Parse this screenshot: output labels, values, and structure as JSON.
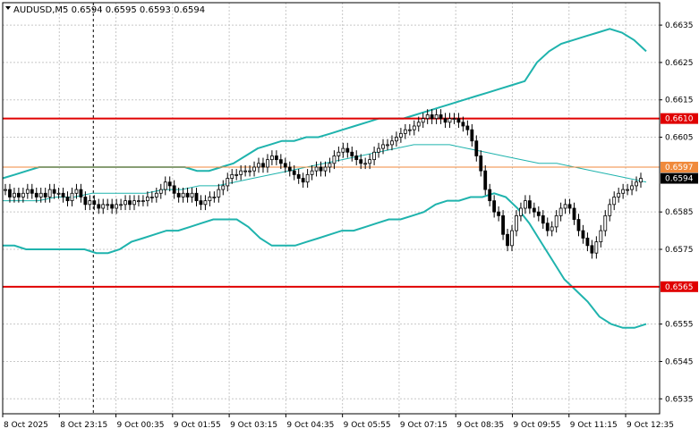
{
  "chart_title": "AUDUSD,M5  0.6594 0.6595 0.6593 0.6594",
  "colors": {
    "background": "#ffffff",
    "grid": "#c8c8c8",
    "bollinger_bands": "#1fb3ad",
    "moving_average": "#1fb3ad",
    "support_resistance": "#e00000",
    "current_level_line": "#f08a3c",
    "candle_up": "#ffffff",
    "candle_down": "#000000",
    "current_price_tag": "#000000"
  },
  "chart_data": {
    "type": "candlestick",
    "symbol": "AUDUSD",
    "timeframe": "M5",
    "ohlc_header": {
      "open": 0.6594,
      "high": 0.6595,
      "low": 0.6593,
      "close": 0.6594
    },
    "x_labels": [
      "8 Oct 2025",
      "8 Oct 23:15",
      "9 Oct 00:35",
      "9 Oct 01:55",
      "9 Oct 03:15",
      "9 Oct 04:35",
      "9 Oct 05:55",
      "9 Oct 07:15",
      "9 Oct 08:35",
      "9 Oct 09:55",
      "9 Oct 11:15",
      "9 Oct 12:35"
    ],
    "y_ticks": [
      "0.6635",
      "0.6625",
      "0.6615",
      "0.6605",
      "0.6585",
      "0.6575",
      "0.6555",
      "0.6545",
      "0.6535"
    ],
    "ylim": [
      0.6531,
      0.6641
    ],
    "grid": true,
    "period_separator": "8 Oct 23:15",
    "horizontal_levels": [
      {
        "label": "0.6610",
        "value": 0.661,
        "style": "resistance"
      },
      {
        "label": "0.6597",
        "value": 0.6597,
        "style": "current-level"
      },
      {
        "label": "0.6565",
        "value": 0.6565,
        "style": "support"
      }
    ],
    "current_price": {
      "label": "0.6594",
      "value": 0.6594
    },
    "candles_close": [
      0.6591,
      0.6589,
      0.659,
      0.6589,
      0.659,
      0.6591,
      0.659,
      0.6589,
      0.659,
      0.6589,
      0.6591,
      0.659,
      0.659,
      0.6589,
      0.6588,
      0.659,
      0.6591,
      0.6589,
      0.6587,
      0.6588,
      0.6587,
      0.6586,
      0.6587,
      0.6587,
      0.6586,
      0.6587,
      0.6587,
      0.6588,
      0.6587,
      0.6588,
      0.6588,
      0.6588,
      0.6589,
      0.6589,
      0.659,
      0.6591,
      0.6593,
      0.6592,
      0.659,
      0.6589,
      0.659,
      0.6589,
      0.659,
      0.6588,
      0.6587,
      0.6588,
      0.6589,
      0.6589,
      0.6591,
      0.6592,
      0.6594,
      0.6595,
      0.6595,
      0.6596,
      0.6596,
      0.6596,
      0.6597,
      0.6598,
      0.6597,
      0.6599,
      0.66,
      0.6599,
      0.6598,
      0.6597,
      0.6596,
      0.6595,
      0.6594,
      0.6593,
      0.6595,
      0.6596,
      0.6597,
      0.6596,
      0.6597,
      0.6598,
      0.66,
      0.6601,
      0.6602,
      0.6601,
      0.66,
      0.6599,
      0.6598,
      0.6598,
      0.6599,
      0.6601,
      0.6602,
      0.6603,
      0.6603,
      0.6604,
      0.6605,
      0.6606,
      0.6607,
      0.6607,
      0.6608,
      0.6609,
      0.661,
      0.6611,
      0.661,
      0.6611,
      0.661,
      0.6609,
      0.661,
      0.661,
      0.6609,
      0.6608,
      0.6607,
      0.6604,
      0.66,
      0.6596,
      0.6591,
      0.6588,
      0.6585,
      0.6584,
      0.6579,
      0.6576,
      0.658,
      0.6584,
      0.6586,
      0.6588,
      0.6586,
      0.6585,
      0.6584,
      0.6582,
      0.658,
      0.6581,
      0.6584,
      0.6586,
      0.6587,
      0.6586,
      0.6583,
      0.658,
      0.6578,
      0.6576,
      0.6574,
      0.6577,
      0.658,
      0.6584,
      0.6587,
      0.6589,
      0.659,
      0.6591,
      0.6591,
      0.6592,
      0.6593,
      0.6594
    ],
    "bollinger_upper": [
      0.6594,
      0.6595,
      0.6596,
      0.6597,
      0.6597,
      0.6597,
      0.6597,
      0.6597,
      0.6597,
      0.6597,
      0.6597,
      0.6597,
      0.6597,
      0.6597,
      0.6597,
      0.6597,
      0.6596,
      0.6596,
      0.6597,
      0.6598,
      0.66,
      0.6602,
      0.6603,
      0.6604,
      0.6604,
      0.6605,
      0.6605,
      0.6606,
      0.6607,
      0.6608,
      0.6609,
      0.661,
      0.661,
      0.661,
      0.6611,
      0.6612,
      0.6613,
      0.6614,
      0.6615,
      0.6616,
      0.6617,
      0.6618,
      0.6619,
      0.662,
      0.6625,
      0.6628,
      0.663,
      0.6631,
      0.6632,
      0.6633,
      0.6634,
      0.6633,
      0.6631,
      0.6628
    ],
    "bollinger_middle": [
      0.6588,
      0.6588,
      0.6588,
      0.6589,
      0.6589,
      0.659,
      0.659,
      0.659,
      0.659,
      0.6591,
      0.6591,
      0.6592,
      0.6592,
      0.6593,
      0.6594,
      0.6595,
      0.6596,
      0.6597,
      0.6598,
      0.6599,
      0.66,
      0.6601,
      0.6602,
      0.6603,
      0.6603,
      0.6603,
      0.6602,
      0.6601,
      0.66,
      0.6599,
      0.6598,
      0.6598,
      0.6597,
      0.6596,
      0.6595,
      0.6594,
      0.6593
    ],
    "bollinger_lower": [
      0.6576,
      0.6576,
      0.6575,
      0.6575,
      0.6575,
      0.6575,
      0.6575,
      0.6575,
      0.6574,
      0.6574,
      0.6575,
      0.6577,
      0.6578,
      0.6579,
      0.658,
      0.658,
      0.6581,
      0.6582,
      0.6583,
      0.6583,
      0.6583,
      0.6581,
      0.6578,
      0.6576,
      0.6576,
      0.6576,
      0.6577,
      0.6578,
      0.6579,
      0.658,
      0.658,
      0.6581,
      0.6582,
      0.6583,
      0.6583,
      0.6584,
      0.6585,
      0.6587,
      0.6588,
      0.6588,
      0.6589,
      0.6589,
      0.659,
      0.6589,
      0.6586,
      0.6582,
      0.6577,
      0.6572,
      0.6567,
      0.6564,
      0.6561,
      0.6557,
      0.6555,
      0.6554,
      0.6554,
      0.6555
    ]
  }
}
